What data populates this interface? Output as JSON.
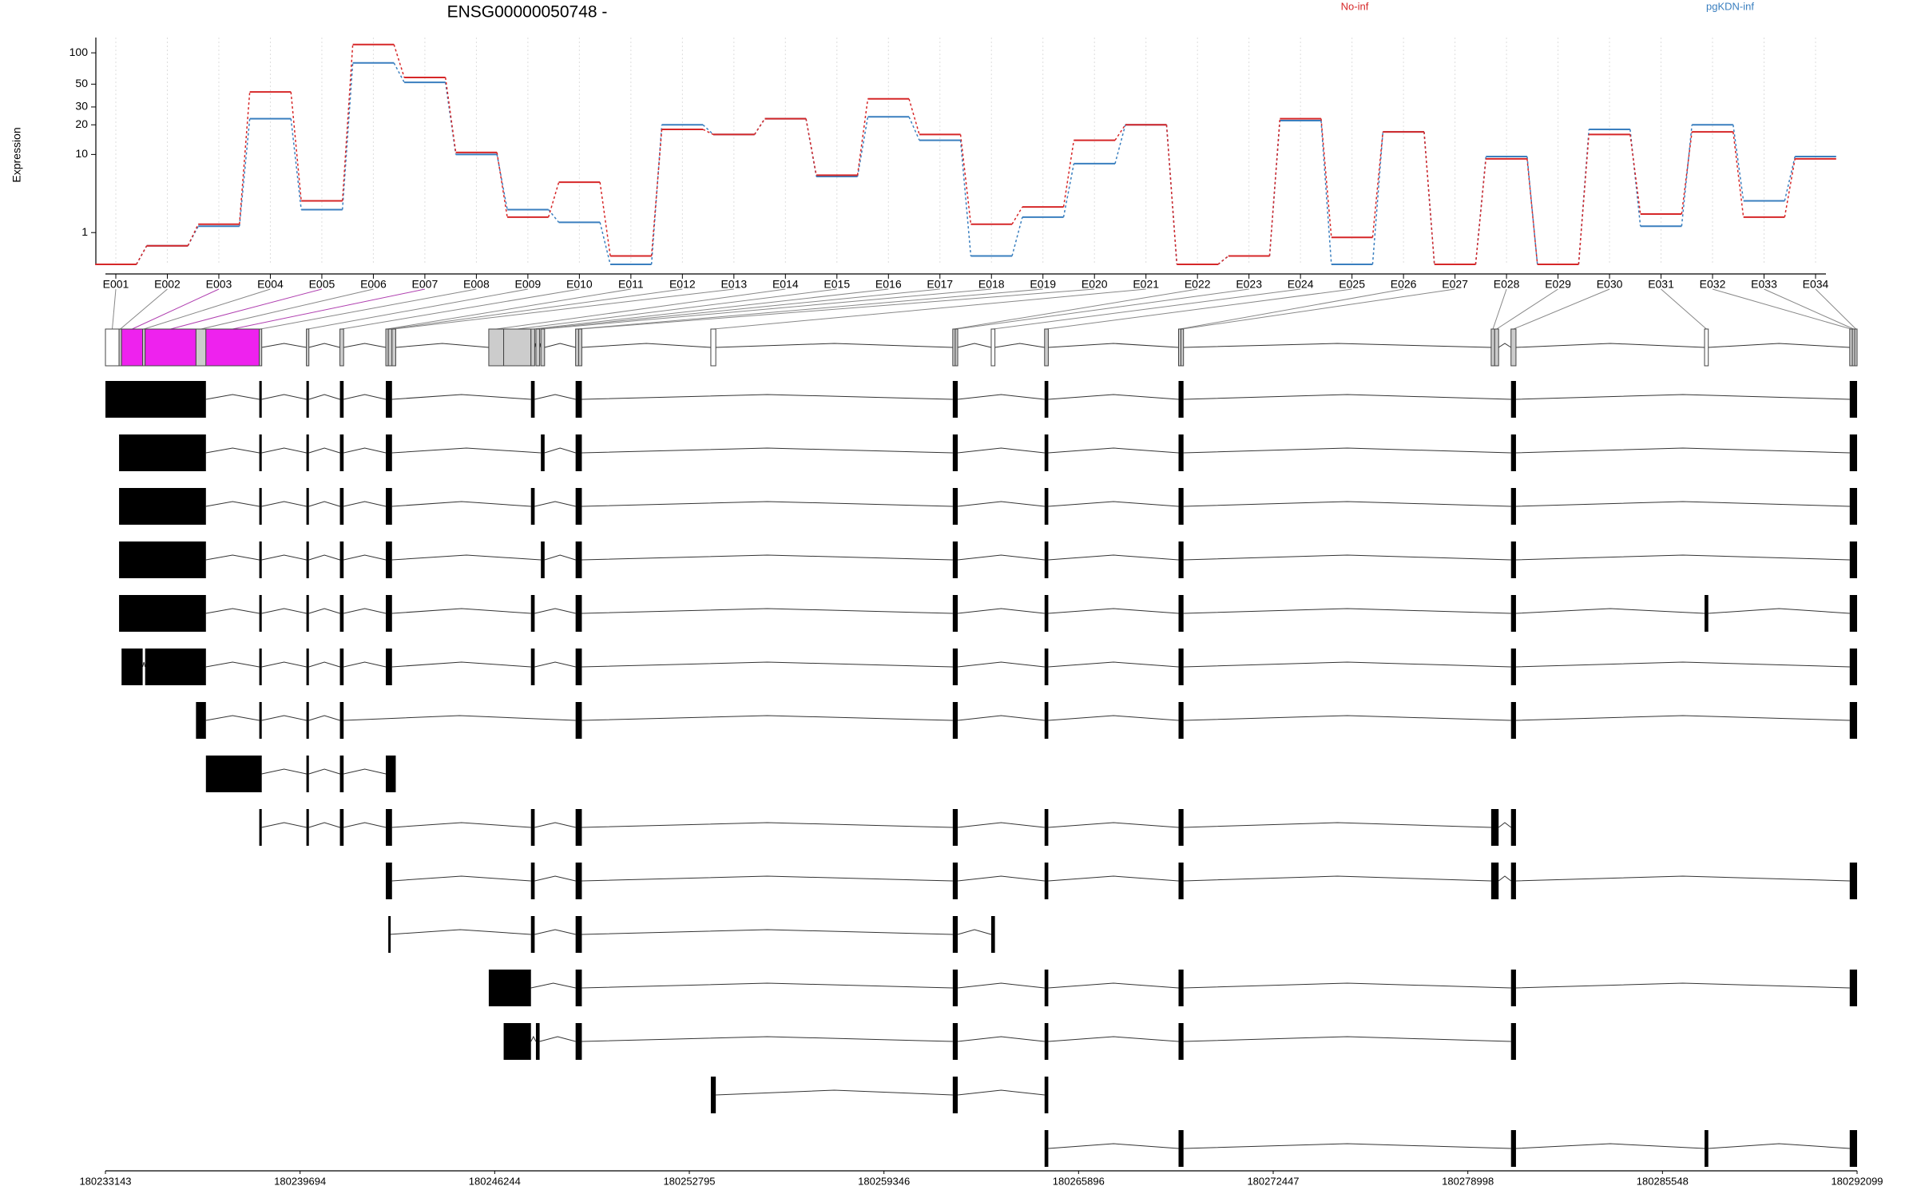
{
  "chart_data": [
    {
      "type": "line",
      "title": "ENSG00000050748 -",
      "ylabel": "Expression",
      "categories": [
        "E001",
        "E002",
        "E003",
        "E004",
        "E005",
        "E006",
        "E007",
        "E008",
        "E009",
        "E010",
        "E011",
        "E012",
        "E013",
        "E014",
        "E015",
        "E016",
        "E017",
        "E018",
        "E019",
        "E020",
        "E021",
        "E022",
        "E023",
        "E024",
        "E025",
        "E026",
        "E027",
        "E028",
        "E029",
        "E030",
        "E031",
        "E032",
        "E033",
        "E034"
      ],
      "series": [
        {
          "name": "pgKDN-inf",
          "color": "#3a7fbf",
          "values": [
            0,
            0.5,
            1.3,
            23,
            2.3,
            80,
            52,
            10,
            2.3,
            1.5,
            0,
            20,
            16,
            23,
            5.8,
            24,
            14,
            0.2,
            1.8,
            8,
            20,
            0,
            0.2,
            22,
            0,
            17,
            0,
            9.5,
            0,
            18,
            1.3,
            20,
            3,
            9.5
          ]
        },
        {
          "name": "No-inf",
          "color": "#d62728",
          "values": [
            0,
            0.5,
            1.4,
            42,
            3,
            120,
            58,
            10.5,
            1.8,
            5,
            0.2,
            18,
            16,
            23,
            6,
            36,
            16,
            1.4,
            2.5,
            14,
            20,
            0,
            0.2,
            23,
            0.8,
            17,
            0,
            9,
            0,
            16,
            2,
            17,
            1.8,
            9
          ]
        }
      ],
      "ylim": [
        0,
        140
      ],
      "yticks": [
        1,
        10,
        20,
        30,
        50,
        100
      ],
      "yscale": "log1p",
      "grid": true
    },
    {
      "type": "gene-model",
      "xlim": [
        180233143,
        180292099
      ],
      "xticks": [
        180233143,
        180239694,
        180246244,
        180252795,
        180259346,
        180265896,
        180272447,
        180278998,
        180285548,
        180292099
      ],
      "exons": [
        [
          180233143,
          180233602
        ],
        [
          180233602,
          180233686
        ],
        [
          180233686,
          180234396
        ],
        [
          180234396,
          180234479
        ],
        [
          180234479,
          180236191
        ],
        [
          180236191,
          180236525
        ],
        [
          180236525,
          180238321
        ],
        [
          180238321,
          180238404
        ],
        [
          180239907,
          180239991
        ],
        [
          180241035,
          180241160
        ],
        [
          180242580,
          180242663
        ],
        [
          180242663,
          180242788
        ],
        [
          180242788,
          180242914
        ],
        [
          180246045,
          180246546
        ],
        [
          180246546,
          180247465
        ],
        [
          180247465,
          180247590
        ],
        [
          180247632,
          180247757
        ],
        [
          180247799,
          180247924
        ],
        [
          180248968,
          180249070
        ],
        [
          180249070,
          180249177
        ],
        [
          180253519,
          180253686
        ],
        [
          180261662,
          180261745
        ],
        [
          180261745,
          180261829
        ],
        [
          180262956,
          180263081
        ],
        [
          180264752,
          180264877
        ],
        [
          180269261,
          180269340
        ],
        [
          180269340,
          180269428
        ],
        [
          180279783,
          180279900
        ],
        [
          180279900,
          180280034
        ],
        [
          180280451,
          180280618
        ],
        [
          180286965,
          180287091
        ],
        [
          180291851,
          180291940
        ],
        [
          180291940,
          180292020
        ],
        [
          180292020,
          180292099
        ]
      ],
      "exon_colors": [
        "#ffffff",
        "#cccccc",
        "#ee22ee",
        "#cccccc",
        "#ee22ee",
        "#cccccc",
        "#ee22ee",
        "#cccccc",
        "#cccccc",
        "#cccccc",
        "#cccccc",
        "#cccccc",
        "#cccccc",
        "#cccccc",
        "#cccccc",
        "#cccccc",
        "#cccccc",
        "#cccccc",
        "#cccccc",
        "#cccccc",
        "#ffffff",
        "#cccccc",
        "#cccccc",
        "#ffffff",
        "#cccccc",
        "#cccccc",
        "#cccccc",
        "#cccccc",
        "#cccccc",
        "#cccccc",
        "#ffffff",
        "#cccccc",
        "#cccccc",
        "#cccccc"
      ],
      "transcripts": [
        [
          [
            180233143,
            180236525
          ],
          [
            180238321,
            180238404
          ],
          [
            180239907,
            180239991
          ],
          [
            180241035,
            180241160
          ],
          [
            180242580,
            180242788
          ],
          [
            180247465,
            180247590
          ],
          [
            180248968,
            180249177
          ],
          [
            180261662,
            180261829
          ],
          [
            180264752,
            180264877
          ],
          [
            180269261,
            180269428
          ],
          [
            180280451,
            180280618
          ],
          [
            180291851,
            180292099
          ]
        ],
        [
          [
            180233602,
            180236525
          ],
          [
            180238321,
            180238404
          ],
          [
            180239907,
            180239991
          ],
          [
            180241035,
            180241160
          ],
          [
            180242580,
            180242788
          ],
          [
            180247799,
            180247924
          ],
          [
            180248968,
            180249177
          ],
          [
            180261662,
            180261829
          ],
          [
            180264752,
            180264877
          ],
          [
            180269261,
            180269428
          ],
          [
            180280451,
            180280618
          ],
          [
            180291851,
            180292099
          ]
        ],
        [
          [
            180233602,
            180236525
          ],
          [
            180238321,
            180238404
          ],
          [
            180239907,
            180239991
          ],
          [
            180241035,
            180241160
          ],
          [
            180242580,
            180242788
          ],
          [
            180247465,
            180247590
          ],
          [
            180248968,
            180249177
          ],
          [
            180261662,
            180261829
          ],
          [
            180264752,
            180264877
          ],
          [
            180269261,
            180269428
          ],
          [
            180280451,
            180280618
          ],
          [
            180291851,
            180292099
          ]
        ],
        [
          [
            180233602,
            180236525
          ],
          [
            180238321,
            180238404
          ],
          [
            180239907,
            180239991
          ],
          [
            180241035,
            180241160
          ],
          [
            180242580,
            180242788
          ],
          [
            180247799,
            180247924
          ],
          [
            180248968,
            180249177
          ],
          [
            180261662,
            180261829
          ],
          [
            180264752,
            180264877
          ],
          [
            180269261,
            180269428
          ],
          [
            180280451,
            180280618
          ],
          [
            180291851,
            180292099
          ]
        ],
        [
          [
            180233602,
            180236525
          ],
          [
            180238321,
            180238404
          ],
          [
            180239907,
            180239991
          ],
          [
            180241035,
            180241160
          ],
          [
            180242580,
            180242788
          ],
          [
            180247465,
            180247590
          ],
          [
            180248968,
            180249177
          ],
          [
            180261662,
            180261829
          ],
          [
            180264752,
            180264877
          ],
          [
            180269261,
            180269428
          ],
          [
            180280451,
            180280618
          ],
          [
            180286965,
            180287091
          ],
          [
            180291851,
            180292099
          ]
        ],
        [
          [
            180233686,
            180234396
          ],
          [
            180234479,
            180236525
          ],
          [
            180238321,
            180238404
          ],
          [
            180239907,
            180239991
          ],
          [
            180241035,
            180241160
          ],
          [
            180242580,
            180242788
          ],
          [
            180247465,
            180247590
          ],
          [
            180248968,
            180249177
          ],
          [
            180261662,
            180261829
          ],
          [
            180264752,
            180264877
          ],
          [
            180269261,
            180269428
          ],
          [
            180280451,
            180280618
          ],
          [
            180291851,
            180292099
          ]
        ],
        [
          [
            180236191,
            180236525
          ],
          [
            180238321,
            180238404
          ],
          [
            180239907,
            180239991
          ],
          [
            180241035,
            180241160
          ],
          [
            180248968,
            180249177
          ],
          [
            180261662,
            180261829
          ],
          [
            180264752,
            180264877
          ],
          [
            180269261,
            180269428
          ],
          [
            180280451,
            180280618
          ],
          [
            180291851,
            180292099
          ]
        ],
        [
          [
            180236525,
            180238404
          ],
          [
            180239907,
            180239991
          ],
          [
            180241035,
            180241160
          ],
          [
            180242580,
            180242914
          ]
        ],
        [
          [
            180238321,
            180238404
          ],
          [
            180239907,
            180239991
          ],
          [
            180241035,
            180241160
          ],
          [
            180242580,
            180242788
          ],
          [
            180247465,
            180247590
          ],
          [
            180248968,
            180249177
          ],
          [
            180261662,
            180261829
          ],
          [
            180264752,
            180264877
          ],
          [
            180269261,
            180269428
          ],
          [
            180279783,
            180280034
          ],
          [
            180280451,
            180280618
          ]
        ],
        [
          [
            180242580,
            180242788
          ],
          [
            180247465,
            180247590
          ],
          [
            180248968,
            180249177
          ],
          [
            180261662,
            180261829
          ],
          [
            180264752,
            180264877
          ],
          [
            180269261,
            180269428
          ],
          [
            180279783,
            180280034
          ],
          [
            180280451,
            180280618
          ],
          [
            180291851,
            180292099
          ]
        ],
        [
          [
            180242663,
            180242700
          ],
          [
            180247465,
            180247590
          ],
          [
            180248968,
            180249177
          ],
          [
            180261662,
            180261829
          ],
          [
            180262956,
            180263081
          ]
        ],
        [
          [
            180246045,
            180247465
          ],
          [
            180248968,
            180249177
          ],
          [
            180261662,
            180261829
          ],
          [
            180264752,
            180264877
          ],
          [
            180269261,
            180269428
          ],
          [
            180280451,
            180280618
          ],
          [
            180291851,
            180292099
          ]
        ],
        [
          [
            180246546,
            180247465
          ],
          [
            180247632,
            180247757
          ],
          [
            180248968,
            180249177
          ],
          [
            180261662,
            180261829
          ],
          [
            180264752,
            180264877
          ],
          [
            180269261,
            180269428
          ],
          [
            180280451,
            180280618
          ]
        ],
        [
          [
            180253519,
            180253686
          ],
          [
            180261662,
            180261829
          ],
          [
            180264752,
            180264877
          ]
        ],
        [
          [
            180264752,
            180264877
          ],
          [
            180269261,
            180269428
          ],
          [
            180280451,
            180280618
          ],
          [
            180286965,
            180287091
          ],
          [
            180291851,
            180292099
          ]
        ]
      ]
    }
  ]
}
